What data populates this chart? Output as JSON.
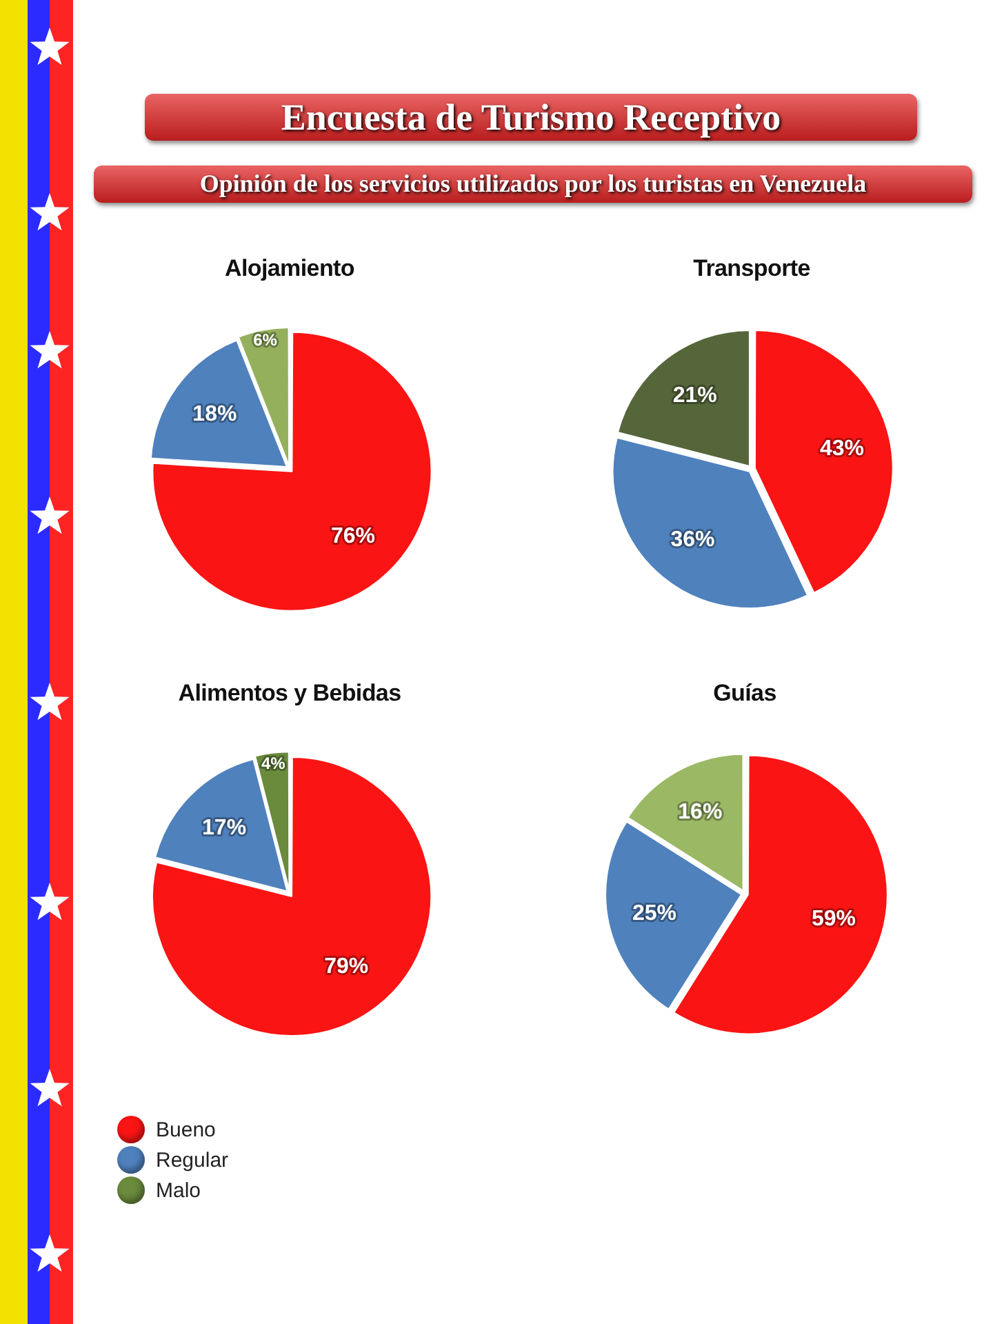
{
  "chart_data": [
    {
      "type": "other",
      "title": "Encuesta de Turismo Receptivo",
      "subtitle": "Opinión de los servicios utilizados por los turistas en Venezuela"
    },
    {
      "type": "pie",
      "title": "Alojamiento",
      "categories": [
        null,
        null,
        null
      ],
      "values": [
        76,
        18,
        6
      ],
      "colors": [
        "#fa1414",
        "#4f81bd",
        "#94b05c"
      ],
      "value_labels": [
        "76%",
        "18%",
        "6%"
      ]
    },
    {
      "type": "pie",
      "title": "Transporte",
      "categories": [
        null,
        null,
        null
      ],
      "values": [
        43,
        36,
        21
      ],
      "colors": [
        "#fa1414",
        "#4f81bd",
        "#55663a"
      ],
      "value_labels": [
        "43%",
        "36%",
        "21%"
      ]
    },
    {
      "type": "pie",
      "title": "Alimentos y Bebidas",
      "categories": [
        "Bueno",
        "Regular",
        "Malo"
      ],
      "values": [
        79,
        17,
        4
      ],
      "colors": [
        "#fa1414",
        "#4f81bd",
        "#6a8a3c"
      ],
      "value_labels": [
        "79%",
        "17%",
        "4%"
      ],
      "legend": "bottom left"
    },
    {
      "type": "pie",
      "title": "Guías",
      "categories": [
        null,
        null,
        null
      ],
      "values": [
        59,
        25,
        16
      ],
      "colors": [
        "#fa1414",
        "#4f81bd",
        "#9bb865"
      ],
      "value_labels": [
        "59%",
        "25%",
        "16%"
      ]
    }
  ]
}
